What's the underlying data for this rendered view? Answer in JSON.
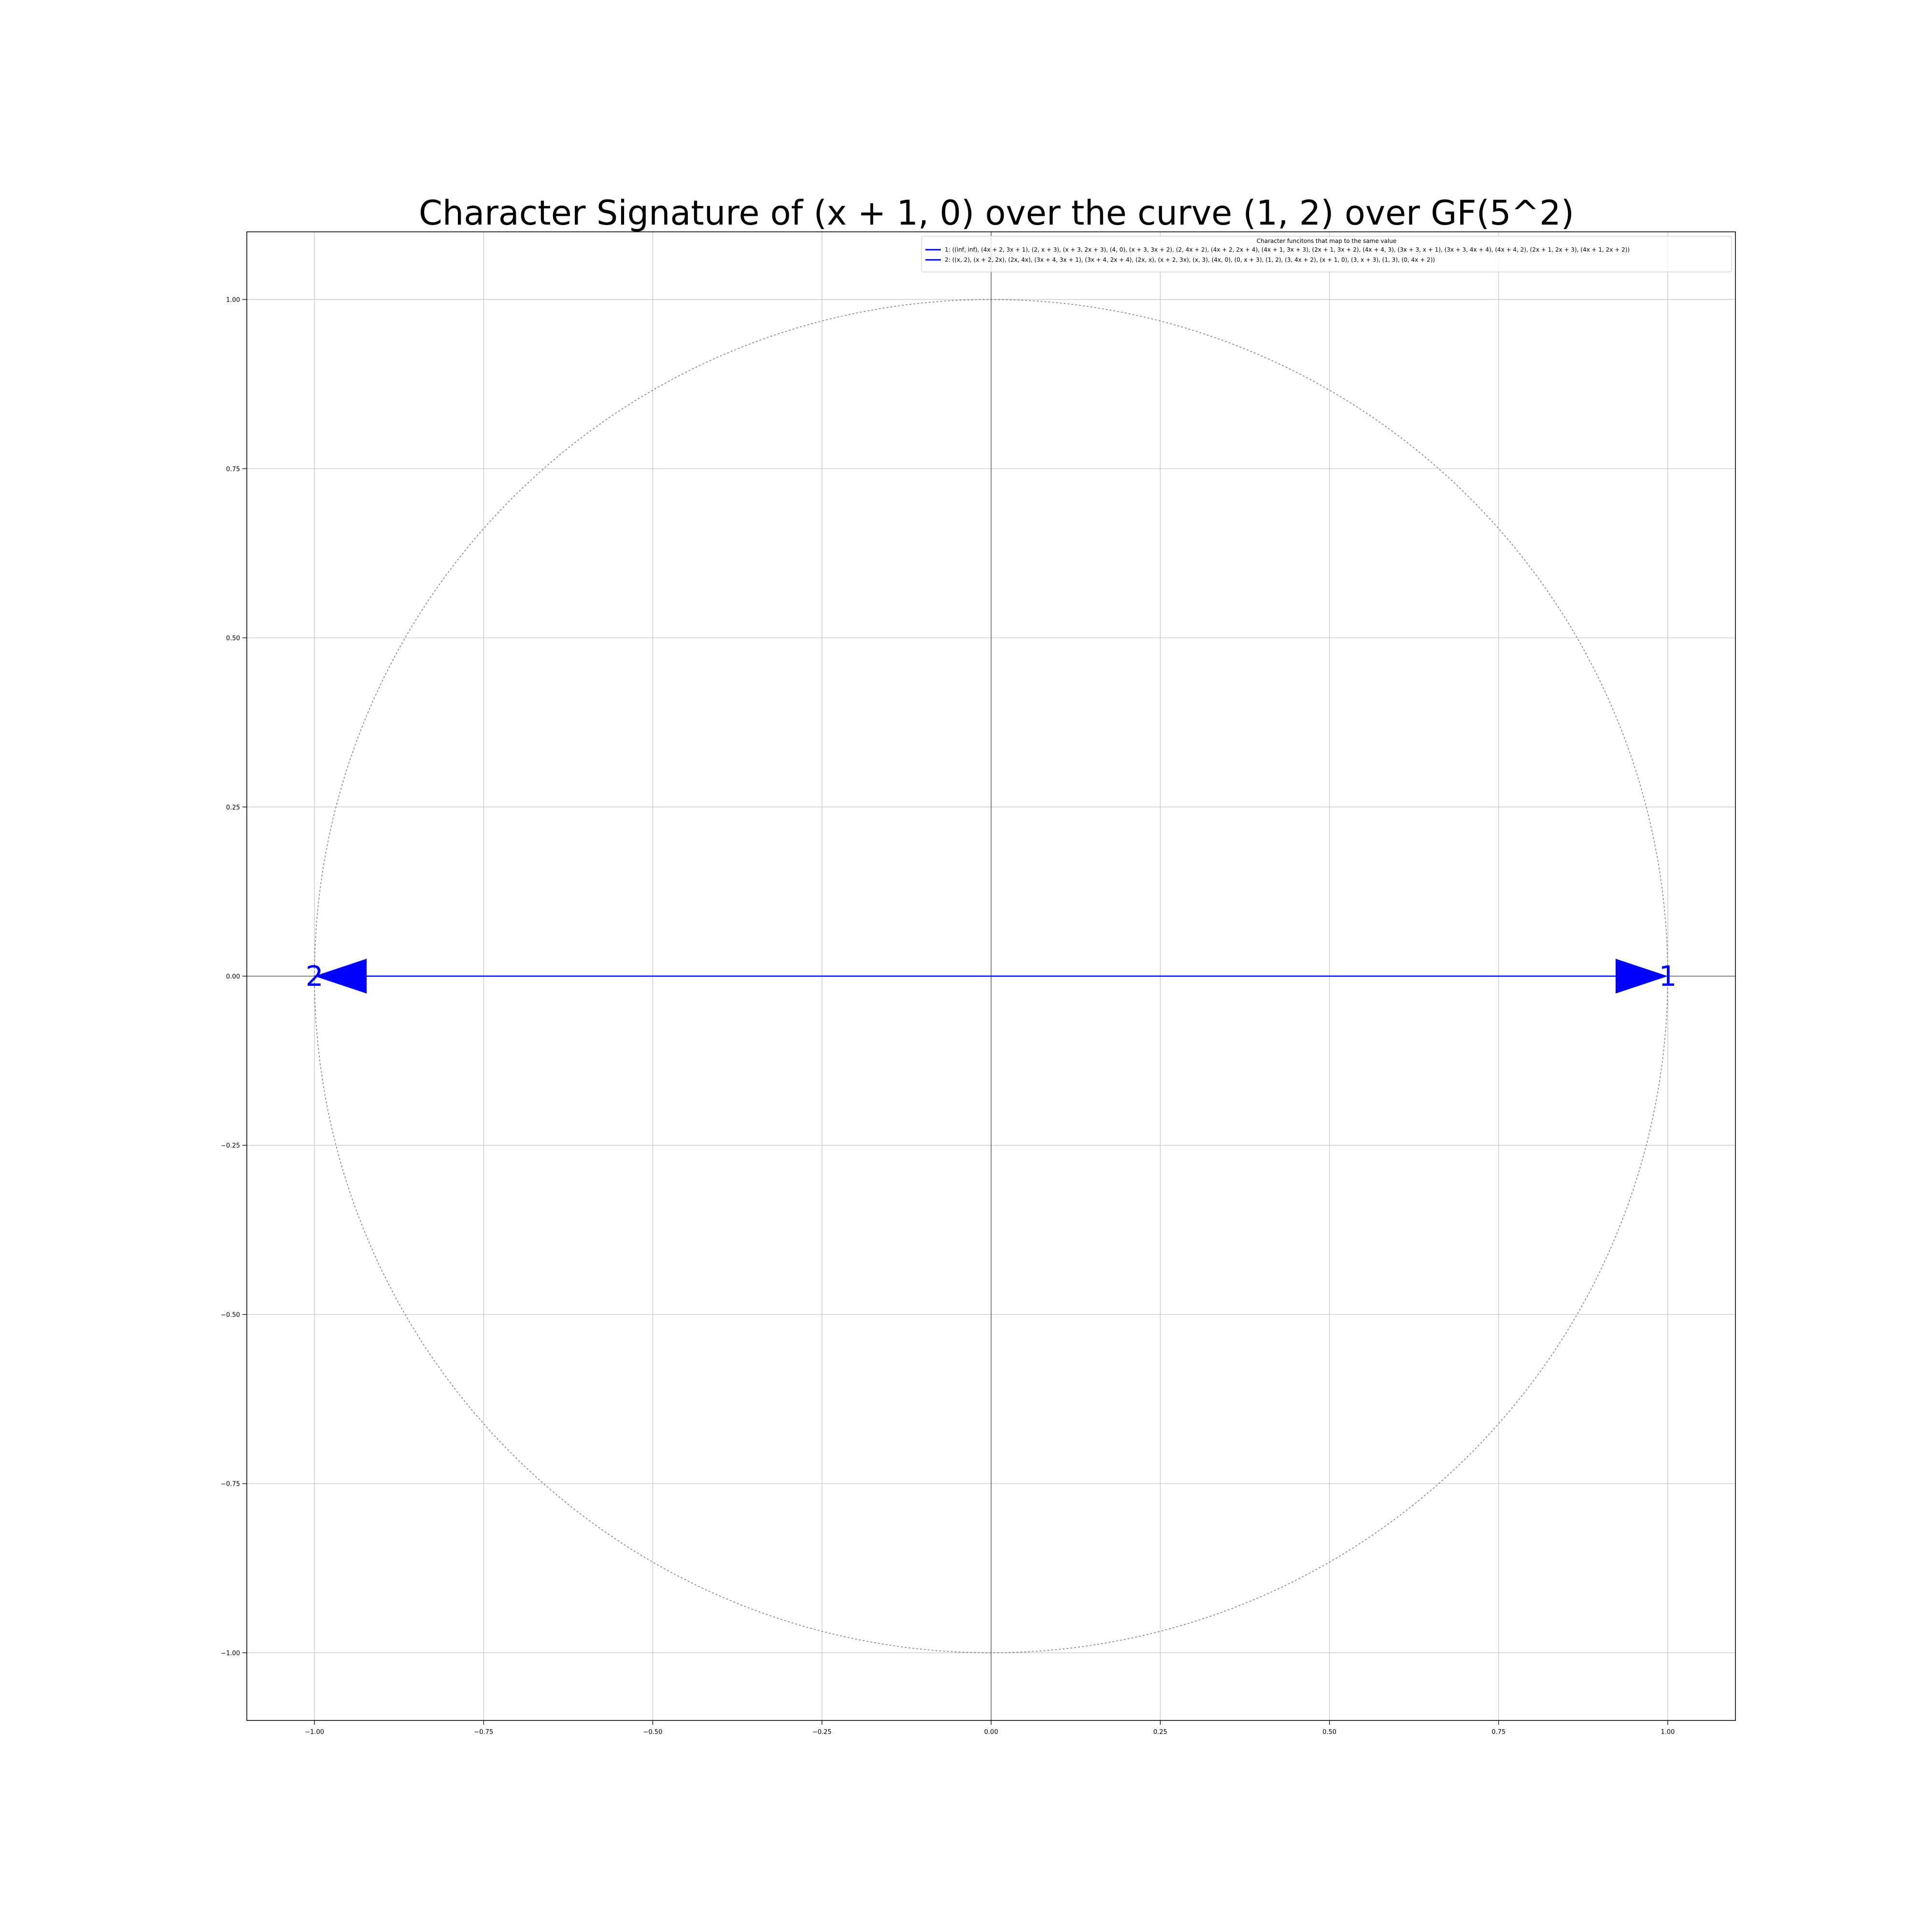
{
  "chart_data": {
    "type": "scatter",
    "title": "Character Signature of (x + 1, 0) over the curve (1, 2) over GF(5^2)",
    "xlabel": "",
    "ylabel": "",
    "xlim": [
      -1.1,
      1.1
    ],
    "ylim": [
      -1.1,
      1.1
    ],
    "grid": true,
    "legend_position": "top-right",
    "xticks": [
      -1.0,
      -0.75,
      -0.5,
      -0.25,
      0.0,
      0.25,
      0.5,
      0.75,
      1.0
    ],
    "yticks": [
      -1.0,
      -0.75,
      -0.5,
      -0.25,
      0.0,
      0.25,
      0.5,
      0.75,
      1.0
    ],
    "xtick_labels": [
      "−1.00",
      "−0.75",
      "−0.50",
      "−0.25",
      "0.00",
      "0.25",
      "0.50",
      "0.75",
      "1.00"
    ],
    "ytick_labels": [
      "−1.00",
      "−0.75",
      "−0.50",
      "−0.25",
      "0.00",
      "0.25",
      "0.50",
      "0.75",
      "1.00"
    ],
    "unit_circle": true,
    "legend": {
      "title": "Character funcitons that map to the same value",
      "entries": [
        "1: ((inf, inf), (4x + 2, 3x + 1), (2, x + 3), (x + 3, 2x + 3), (4, 0), (x + 3, 3x + 2), (2, 4x + 2), (4x + 2, 2x + 4), (4x + 1, 3x + 3), (2x + 1, 3x + 2), (4x + 4, 3), (3x + 3, x + 1), (3x + 3, 4x + 4), (4x + 4, 2), (2x + 1, 2x + 3), (4x + 1, 2x + 2))",
        "2: ((x, 2), (x + 2, 2x), (2x, 4x), (3x + 4, 3x + 1), (3x + 4, 2x + 4), (2x, x), (x + 2, 3x), (x, 3), (4x, 0), (0, x + 3), (1, 2), (3, 4x + 2), (x + 1, 0), (3, x + 3), (1, 3), (0, 4x + 2))"
      ]
    },
    "series": [
      {
        "name": "1",
        "x": [
          0,
          1
        ],
        "y": [
          0,
          0
        ],
        "label": "1",
        "color": "#0000ff"
      },
      {
        "name": "2",
        "x": [
          0,
          -1
        ],
        "y": [
          0,
          0
        ],
        "label": "2",
        "color": "#0000ff"
      }
    ]
  }
}
